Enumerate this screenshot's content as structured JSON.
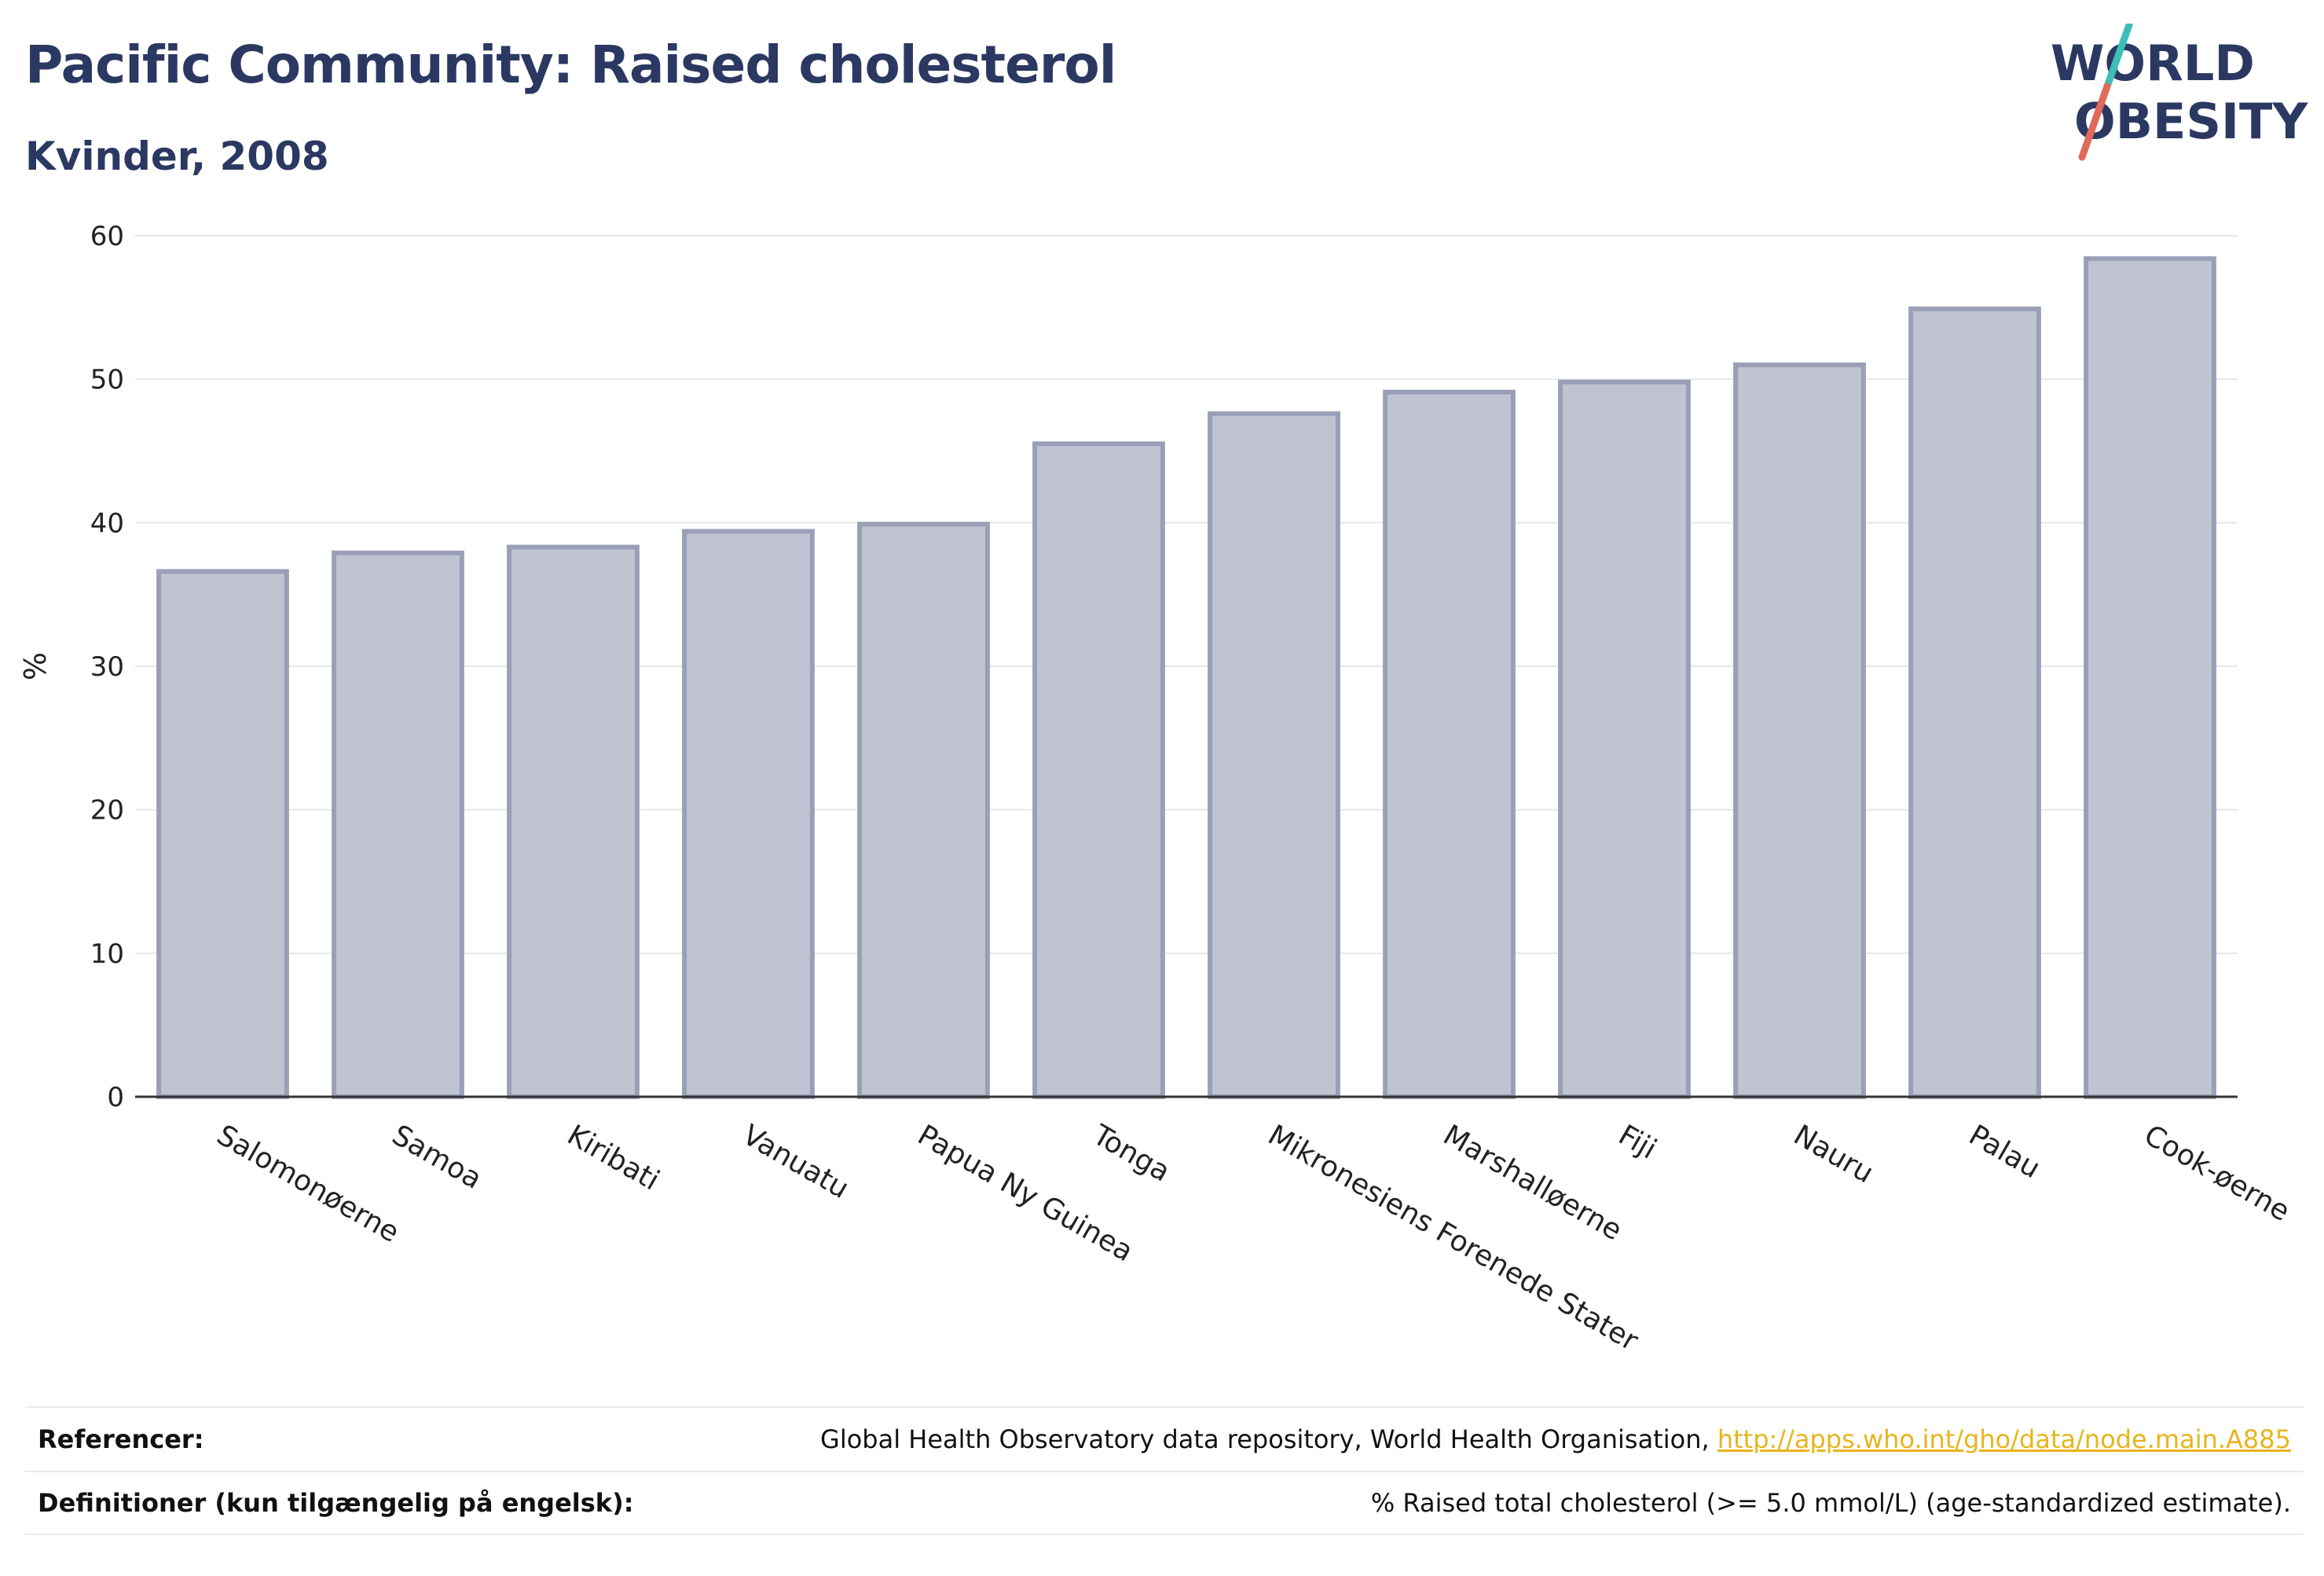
{
  "header": {
    "title": "Pacific Community: Raised cholesterol",
    "subtitle": "Kvinder, 2008"
  },
  "logo": {
    "line1": "WORLD",
    "line2": "OBESITY",
    "accent_colors": [
      "#3dbfb8",
      "#e26a5a"
    ]
  },
  "colors": {
    "title": "#2b3862",
    "bar_fill": "#c0c3d1",
    "bar_stroke": "#9a9fb7",
    "link": "#e8b41e"
  },
  "chart_data": {
    "type": "bar",
    "title": "Pacific Community: Raised cholesterol",
    "subtitle": "Kvinder, 2008",
    "xlabel": "",
    "ylabel": "%",
    "ylim": [
      0,
      60
    ],
    "yticks": [
      0,
      10,
      20,
      30,
      40,
      50,
      60
    ],
    "grid": true,
    "categories": [
      "Salomonøerne",
      "Samoa",
      "Kiribati",
      "Vanuatu",
      "Papua Ny Guinea",
      "Tonga",
      "Mikronesiens Forenede Stater",
      "Marshalløerne",
      "Fiji",
      "Nauru",
      "Palau",
      "Cook-øerne"
    ],
    "values": [
      36.6,
      37.9,
      38.3,
      39.4,
      39.9,
      45.5,
      47.6,
      49.1,
      49.8,
      51.0,
      54.9,
      58.4
    ]
  },
  "footer": {
    "references_label": "Referencer:",
    "references_text": "Global Health Observatory data repository, World Health Organisation, ",
    "references_link": "http://apps.who.int/gho/data/node.main.A885",
    "definitions_label": "Definitioner (kun tilgængelig på engelsk):",
    "definitions_text": "% Raised total cholesterol (>= 5.0 mmol/L) (age-standardized estimate)."
  }
}
